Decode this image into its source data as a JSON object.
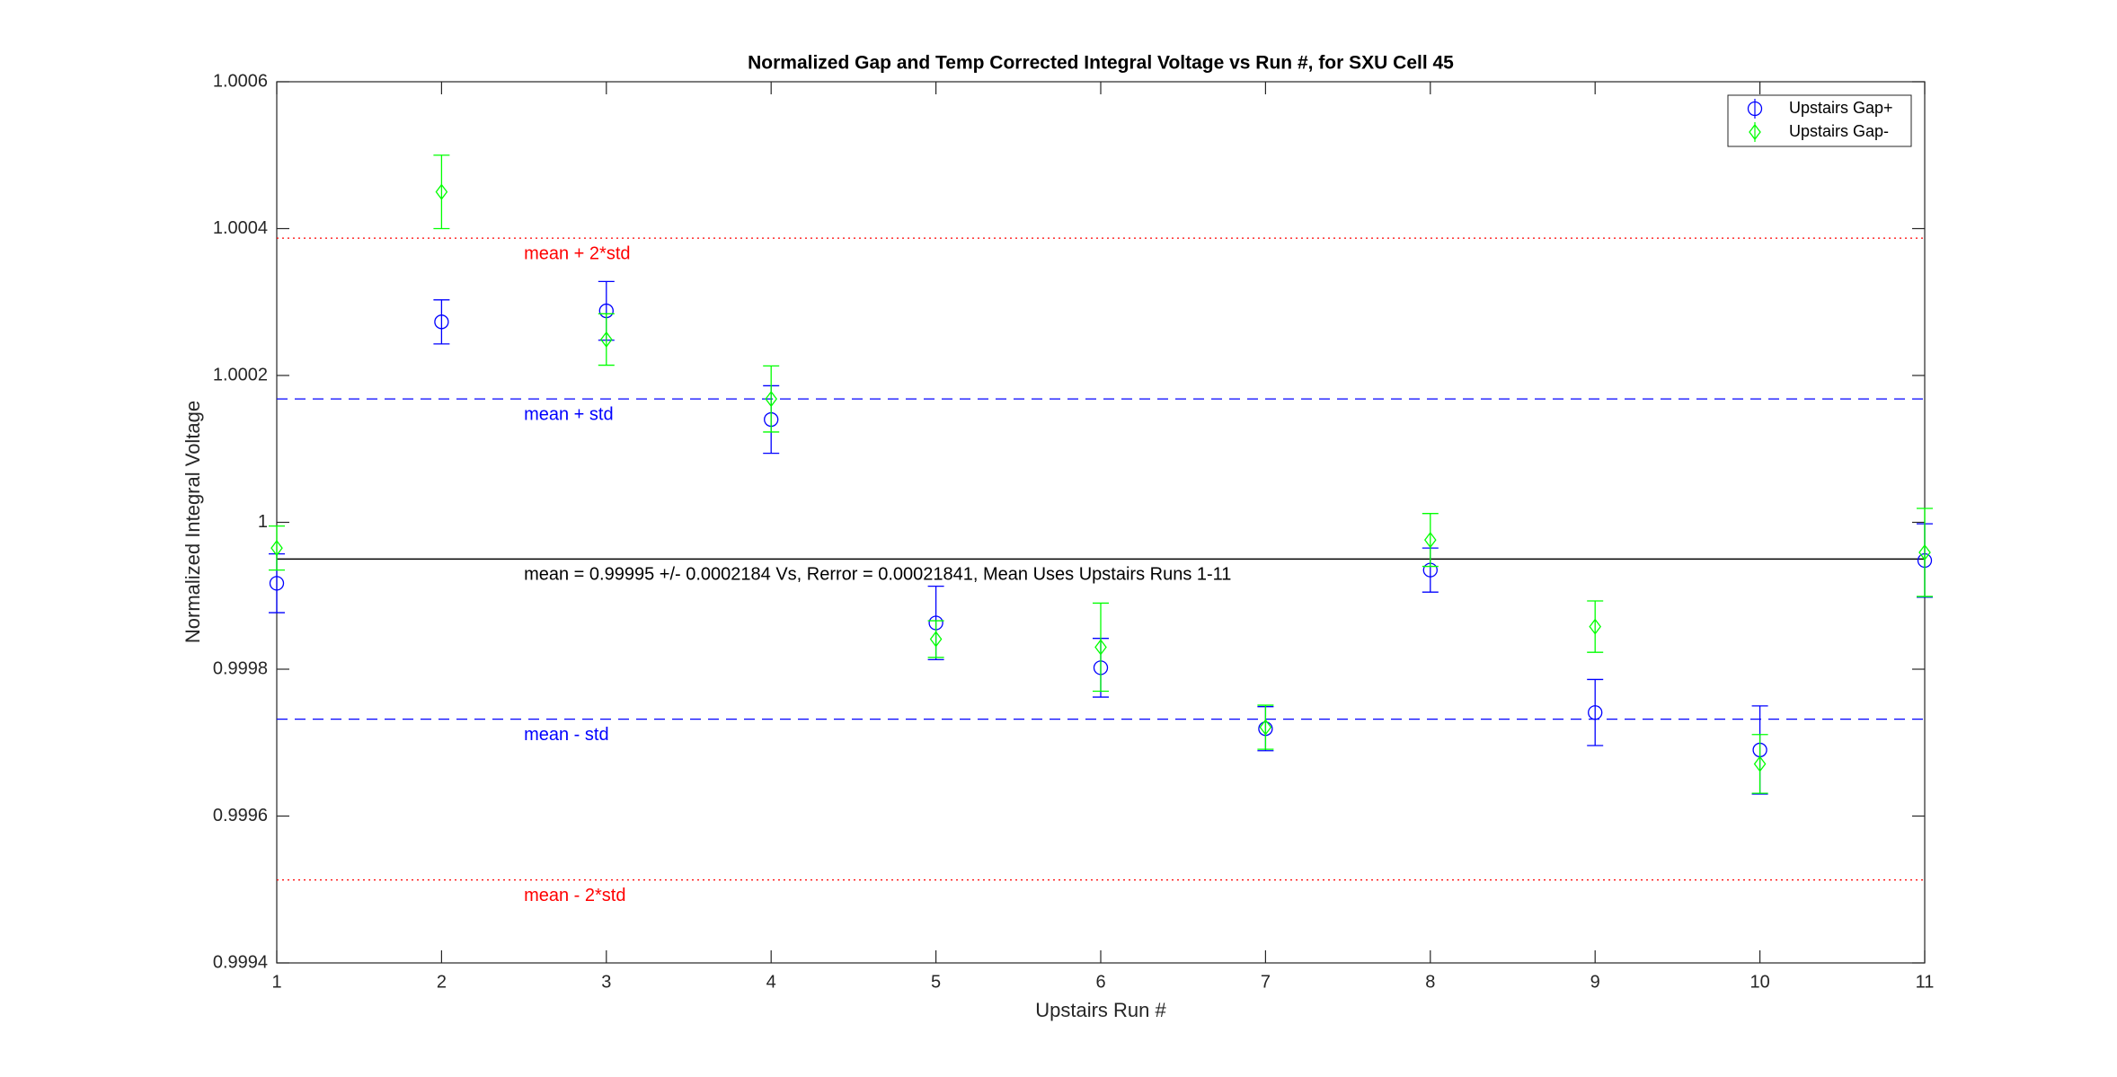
{
  "chart_data": {
    "type": "errorbar",
    "title": "Normalized Gap and Temp Corrected Integral Voltage vs Run #, for SXU Cell 45",
    "xlabel": "Upstairs Run #",
    "ylabel": "Normalized Integral Voltage",
    "x": [
      1,
      2,
      3,
      4,
      5,
      6,
      7,
      8,
      9,
      10,
      11
    ],
    "series": [
      {
        "name": "Upstairs Gap+",
        "color": "#0000ff",
        "marker": "circle",
        "values": [
          0.999917,
          1.000273,
          1.000288,
          1.00014,
          0.999863,
          0.999802,
          0.999719,
          0.999935,
          0.999741,
          0.99969,
          0.999948
        ],
        "errors": [
          4e-05,
          3e-05,
          4e-05,
          4.6e-05,
          5e-05,
          4e-05,
          3e-05,
          3e-05,
          4.5e-05,
          6e-05,
          5e-05
        ]
      },
      {
        "name": "Upstairs Gap-",
        "color": "#00ff00",
        "marker": "diamond",
        "values": [
          0.999965,
          1.00045,
          1.000249,
          1.000168,
          0.999841,
          0.99983,
          0.999721,
          0.999976,
          0.999858,
          0.999671,
          0.999959
        ],
        "errors": [
          3e-05,
          5e-05,
          3.5e-05,
          4.5e-05,
          2.5e-05,
          6e-05,
          3e-05,
          3.6e-05,
          3.5e-05,
          4e-05,
          6e-05
        ]
      }
    ],
    "reference_lines": [
      {
        "value": 1.000387,
        "label": "mean + 2*std",
        "color": "#ff0000",
        "style": "dotted"
      },
      {
        "value": 1.000168,
        "label": "mean + std",
        "color": "#0000ff",
        "style": "dashed"
      },
      {
        "value": 0.99995,
        "label": "mean = 0.99995 +/- 0.0002184 Vs, Rerror = 0.00021841, Mean Uses Upstairs Runs 1-11",
        "color": "#000000",
        "style": "solid"
      },
      {
        "value": 0.999732,
        "label": "mean - std",
        "color": "#0000ff",
        "style": "dashed"
      },
      {
        "value": 0.999513,
        "label": "mean - 2*std",
        "color": "#ff0000",
        "style": "dotted"
      }
    ],
    "xlim": [
      1,
      11
    ],
    "xticks": [
      1,
      2,
      3,
      4,
      5,
      6,
      7,
      8,
      9,
      10,
      11
    ],
    "ylim": [
      0.9994,
      1.0006
    ],
    "yticks": [
      0.9994,
      0.9996,
      0.9998,
      1,
      1.0002,
      1.0004,
      1.0006
    ],
    "legend": "northeast"
  }
}
